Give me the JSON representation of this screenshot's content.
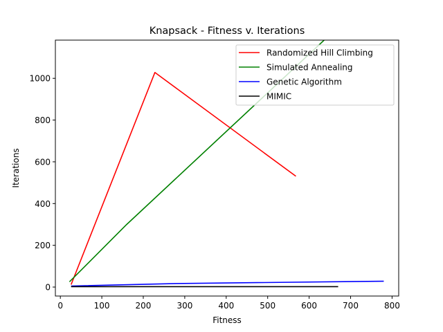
{
  "chart_data": {
    "type": "line",
    "title": "Knapsack - Fitness v. Iterations",
    "xlabel": "Fitness",
    "ylabel": "Iterations",
    "xlim": [
      -12,
      816
    ],
    "ylim": [
      -43,
      1183
    ],
    "xticks": [
      0,
      100,
      200,
      300,
      400,
      500,
      600,
      700,
      800
    ],
    "yticks": [
      0,
      200,
      400,
      600,
      800,
      1000
    ],
    "grid": false,
    "legend_position": "top-right",
    "series": [
      {
        "name": "Randomized Hill Climbing",
        "color": "#ff0000",
        "points": [
          [
            26,
            12
          ],
          [
            228,
            1028
          ],
          [
            568,
            531
          ]
        ]
      },
      {
        "name": "Simulated Annealing",
        "color": "#008000",
        "points": [
          [
            22,
            25
          ],
          [
            160,
            300
          ],
          [
            640,
            1190
          ]
        ]
      },
      {
        "name": "Genetic Algorithm",
        "color": "#0000ff",
        "points": [
          [
            26,
            5
          ],
          [
            280,
            17
          ],
          [
            780,
            28
          ]
        ]
      },
      {
        "name": "MIMIC",
        "color": "#000000",
        "points": [
          [
            26,
            2
          ],
          [
            300,
            2
          ],
          [
            670,
            2
          ]
        ]
      }
    ]
  }
}
